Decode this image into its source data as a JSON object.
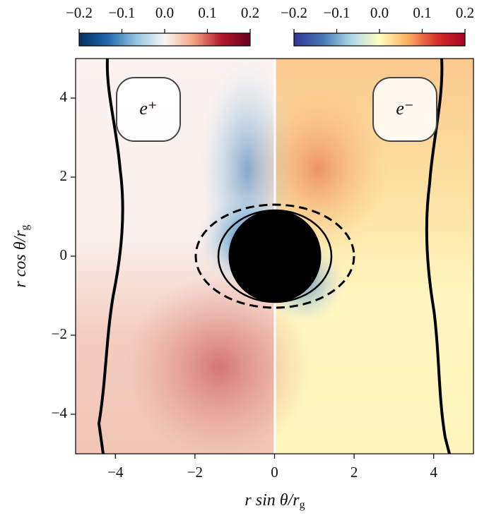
{
  "chart_data": {
    "type": "heatmap",
    "xlabel": {
      "main": "r sin θ/r",
      "sub": "g"
    },
    "ylabel": {
      "main": "r cos θ/r",
      "sub": "g"
    },
    "xlim": [
      -5,
      5
    ],
    "ylim": [
      -5,
      5
    ],
    "xticks": [
      {
        "value": -4,
        "label": "−4"
      },
      {
        "value": -2,
        "label": "−2"
      },
      0,
      2,
      4
    ],
    "yticks": [
      {
        "value": -4,
        "label": "−4"
      },
      {
        "value": -2,
        "label": "−2"
      },
      0,
      2,
      4
    ],
    "panels": [
      {
        "label": "e⁺",
        "colormap": [
          "#053061",
          "#2166ac",
          "#92c5de",
          "#f7f7f7",
          "#f4a582",
          "#b2182b",
          "#67001f"
        ]
      },
      {
        "label": "e⁻",
        "colormap": [
          "#313695",
          "#4575b4",
          "#abd9e9",
          "#ffffbf",
          "#fdae61",
          "#d73027",
          "#a50026"
        ]
      }
    ],
    "colorbars": [
      {
        "lim": [
          -0.2,
          0.2
        ],
        "ticks": [
          {
            "value": -0.2,
            "label": "−0.2"
          },
          {
            "value": -0.1,
            "label": "−0.1"
          },
          {
            "value": 0,
            "label": "0.0"
          },
          0.1,
          0.2
        ]
      },
      {
        "lim": [
          -0.2,
          0.2
        ],
        "ticks": [
          {
            "value": -0.2,
            "label": "−0.2"
          },
          {
            "value": -0.1,
            "label": "−0.1"
          },
          {
            "value": 0,
            "label": "0.0"
          },
          0.1,
          0.2
        ]
      }
    ]
  }
}
